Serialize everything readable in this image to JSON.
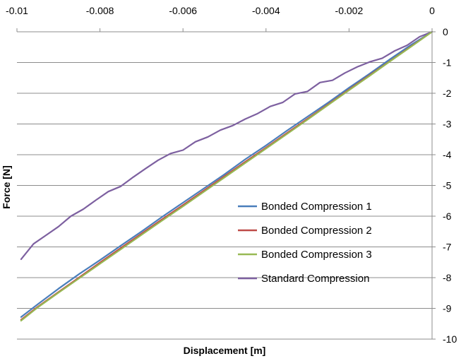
{
  "chart_data": {
    "type": "line",
    "title": "",
    "xlabel": "Displacement [m]",
    "ylabel": "Force [N]",
    "xlim": [
      -0.01,
      0
    ],
    "ylim": [
      -10,
      0
    ],
    "x_ticks": [
      -0.01,
      -0.008,
      -0.006,
      -0.004,
      -0.002,
      0
    ],
    "x_tick_labels": [
      "-0.01",
      "-0.008",
      "-0.006",
      "-0.004",
      "-0.002",
      "0"
    ],
    "y_ticks": [
      0,
      -1,
      -2,
      -3,
      -4,
      -5,
      -6,
      -7,
      -8,
      -9,
      -10
    ],
    "y_tick_labels": [
      "0",
      "-1",
      "-2",
      "-3",
      "-4",
      "-5",
      "-6",
      "-7",
      "-8",
      "-9",
      "-10"
    ],
    "x_axis_position": "top",
    "y_axis_position": "right",
    "grid": {
      "horizontal": true,
      "vertical": false
    },
    "legend_position": "center-right",
    "series": [
      {
        "name": "Bonded Compression 1",
        "color": "#4a7ebb",
        "x": [
          0,
          -0.0005,
          -0.001,
          -0.0015,
          -0.002,
          -0.0025,
          -0.003,
          -0.0035,
          -0.004,
          -0.0045,
          -0.005,
          -0.0055,
          -0.006,
          -0.0065,
          -0.007,
          -0.0075,
          -0.008,
          -0.0085,
          -0.009,
          -0.0095,
          -0.0099
        ],
        "y": [
          0,
          -0.42,
          -0.88,
          -1.36,
          -1.82,
          -2.3,
          -2.76,
          -3.22,
          -3.7,
          -4.15,
          -4.64,
          -5.1,
          -5.56,
          -6.02,
          -6.5,
          -6.96,
          -7.43,
          -7.88,
          -8.36,
          -8.87,
          -9.28
        ]
      },
      {
        "name": "Bonded Compression 2",
        "color": "#be4b48",
        "x": [
          0,
          -0.0005,
          -0.001,
          -0.0015,
          -0.002,
          -0.0025,
          -0.003,
          -0.0035,
          -0.004,
          -0.0045,
          -0.005,
          -0.0055,
          -0.006,
          -0.0065,
          -0.007,
          -0.0075,
          -0.008,
          -0.0085,
          -0.009,
          -0.0095,
          -0.0099
        ],
        "y": [
          0,
          -0.47,
          -0.94,
          -1.41,
          -1.88,
          -2.36,
          -2.83,
          -3.3,
          -3.77,
          -4.23,
          -4.7,
          -5.17,
          -5.64,
          -6.1,
          -6.57,
          -7.04,
          -7.51,
          -7.99,
          -8.47,
          -8.95,
          -9.37
        ]
      },
      {
        "name": "Bonded Compression 3",
        "color": "#98b954",
        "x": [
          0,
          -0.0005,
          -0.001,
          -0.0015,
          -0.002,
          -0.0025,
          -0.003,
          -0.0035,
          -0.004,
          -0.0045,
          -0.005,
          -0.0055,
          -0.006,
          -0.0065,
          -0.007,
          -0.0075,
          -0.008,
          -0.0085,
          -0.009,
          -0.0095,
          -0.0099
        ],
        "y": [
          0,
          -0.48,
          -0.95,
          -1.43,
          -1.9,
          -2.38,
          -2.86,
          -3.33,
          -3.8,
          -4.27,
          -4.74,
          -5.21,
          -5.68,
          -6.14,
          -6.61,
          -7.08,
          -7.55,
          -8.02,
          -8.49,
          -8.97,
          -9.4
        ]
      },
      {
        "name": "Standard Compression",
        "color": "#7d60a0",
        "x": [
          0,
          -0.0003,
          -0.0006,
          -0.0009,
          -0.0012,
          -0.0015,
          -0.0018,
          -0.0021,
          -0.0024,
          -0.0027,
          -0.003,
          -0.0033,
          -0.0036,
          -0.0039,
          -0.0042,
          -0.0045,
          -0.0048,
          -0.0051,
          -0.0054,
          -0.0057,
          -0.006,
          -0.0063,
          -0.0066,
          -0.0069,
          -0.0072,
          -0.0075,
          -0.0078,
          -0.0081,
          -0.0084,
          -0.0087,
          -0.009,
          -0.0093,
          -0.0096,
          -0.0099
        ],
        "y": [
          0,
          -0.16,
          -0.44,
          -0.62,
          -0.86,
          -0.98,
          -1.14,
          -1.34,
          -1.58,
          -1.65,
          -1.94,
          -2.02,
          -2.3,
          -2.43,
          -2.66,
          -2.84,
          -3.05,
          -3.2,
          -3.42,
          -3.58,
          -3.85,
          -3.96,
          -4.18,
          -4.45,
          -4.73,
          -5.03,
          -5.2,
          -5.48,
          -5.77,
          -6.0,
          -6.34,
          -6.62,
          -6.9,
          -7.4
        ]
      }
    ]
  }
}
